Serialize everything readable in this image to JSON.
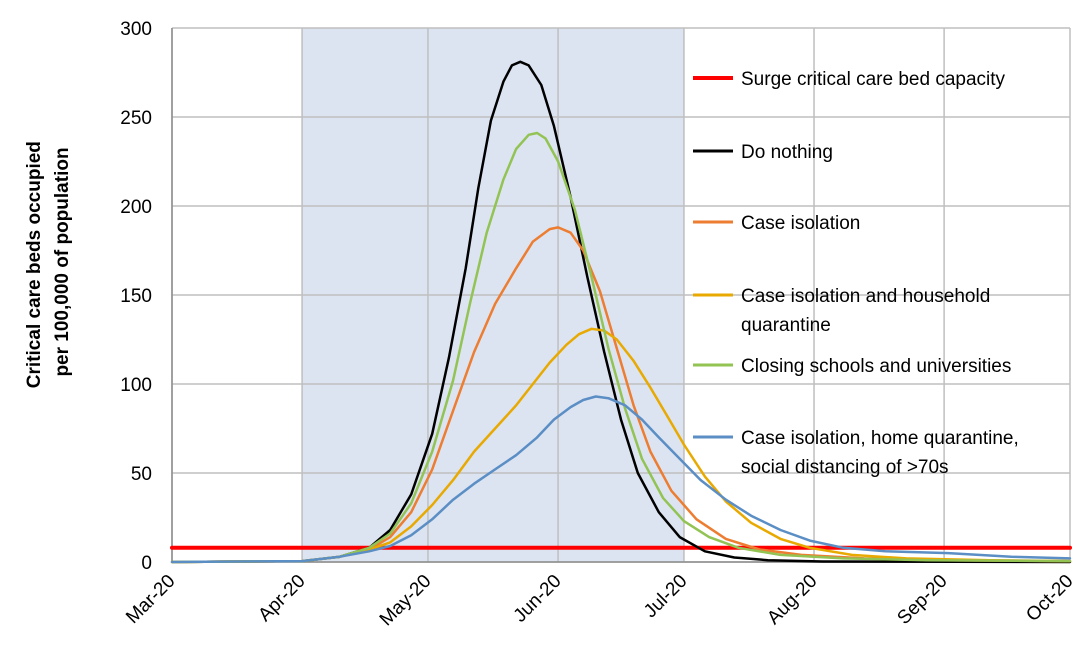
{
  "chart_data": {
    "type": "line",
    "title": "",
    "xlabel": "",
    "ylabel_lines": [
      "Critical care beds occupied",
      "per 100,000 of population"
    ],
    "x_ticks": [
      "Mar-20",
      "Apr-20",
      "May-20",
      "Jun-20",
      "Jul-20",
      "Aug-20",
      "Sep-20",
      "Oct-20"
    ],
    "y_ticks": [
      "0",
      "50",
      "100",
      "150",
      "200",
      "250",
      "300"
    ],
    "ylim": [
      0,
      300
    ],
    "xlim_days": [
      0,
      214
    ],
    "grid": true,
    "shaded_region": {
      "from": "Apr-20",
      "to": "Jul-20",
      "color": "#dce4f2"
    },
    "legend_position": "right",
    "series": [
      {
        "name": "Surge critical care bed capacity",
        "color": "#ff0000",
        "width": 4,
        "points": [
          [
            0,
            8
          ],
          [
            214,
            8
          ]
        ]
      },
      {
        "name": "Do nothing",
        "color": "#000000",
        "width": 2.5,
        "points": [
          [
            0,
            0
          ],
          [
            31,
            0.5
          ],
          [
            40,
            3
          ],
          [
            47,
            8
          ],
          [
            52,
            18
          ],
          [
            57,
            38
          ],
          [
            62,
            72
          ],
          [
            66,
            115
          ],
          [
            70,
            165
          ],
          [
            73,
            210
          ],
          [
            76,
            248
          ],
          [
            79,
            270
          ],
          [
            81,
            279
          ],
          [
            83,
            281
          ],
          [
            85,
            279
          ],
          [
            88,
            268
          ],
          [
            91,
            245
          ],
          [
            95,
            205
          ],
          [
            99,
            160
          ],
          [
            103,
            118
          ],
          [
            107,
            80
          ],
          [
            111,
            50
          ],
          [
            116,
            28
          ],
          [
            121,
            14
          ],
          [
            127,
            6
          ],
          [
            134,
            2.5
          ],
          [
            142,
            1
          ],
          [
            155,
            0.3
          ],
          [
            214,
            0
          ]
        ]
      },
      {
        "name": "Case isolation",
        "color": "#ed7d31",
        "width": 2.5,
        "points": [
          [
            0,
            0
          ],
          [
            31,
            0.5
          ],
          [
            40,
            3
          ],
          [
            47,
            7
          ],
          [
            52,
            14
          ],
          [
            57,
            28
          ],
          [
            62,
            52
          ],
          [
            67,
            85
          ],
          [
            72,
            118
          ],
          [
            77,
            145
          ],
          [
            82,
            165
          ],
          [
            86,
            180
          ],
          [
            90,
            187
          ],
          [
            92,
            188
          ],
          [
            95,
            185
          ],
          [
            98,
            175
          ],
          [
            102,
            152
          ],
          [
            106,
            120
          ],
          [
            110,
            88
          ],
          [
            114,
            62
          ],
          [
            119,
            40
          ],
          [
            125,
            24
          ],
          [
            132,
            13
          ],
          [
            140,
            7
          ],
          [
            150,
            4
          ],
          [
            165,
            2
          ],
          [
            185,
            1
          ],
          [
            214,
            0.5
          ]
        ]
      },
      {
        "name": "Case isolation and household quarantine",
        "color": "#e8a900",
        "width": 2.5,
        "points": [
          [
            0,
            0
          ],
          [
            31,
            0.5
          ],
          [
            40,
            3
          ],
          [
            47,
            7
          ],
          [
            52,
            11
          ],
          [
            57,
            20
          ],
          [
            62,
            32
          ],
          [
            67,
            46
          ],
          [
            72,
            62
          ],
          [
            77,
            75
          ],
          [
            82,
            88
          ],
          [
            86,
            100
          ],
          [
            90,
            112
          ],
          [
            94,
            122
          ],
          [
            97,
            128
          ],
          [
            100,
            131
          ],
          [
            103,
            130
          ],
          [
            106,
            125
          ],
          [
            110,
            113
          ],
          [
            114,
            98
          ],
          [
            118,
            82
          ],
          [
            122,
            66
          ],
          [
            127,
            48
          ],
          [
            132,
            34
          ],
          [
            138,
            22
          ],
          [
            145,
            13
          ],
          [
            152,
            8
          ],
          [
            162,
            4
          ],
          [
            175,
            2
          ],
          [
            195,
            1
          ],
          [
            214,
            0.5
          ]
        ]
      },
      {
        "name": "Closing schools and universities",
        "color": "#92c353",
        "width": 2.5,
        "points": [
          [
            0,
            0
          ],
          [
            31,
            0.5
          ],
          [
            40,
            3
          ],
          [
            47,
            8
          ],
          [
            52,
            16
          ],
          [
            57,
            33
          ],
          [
            62,
            62
          ],
          [
            67,
            102
          ],
          [
            71,
            145
          ],
          [
            75,
            185
          ],
          [
            79,
            215
          ],
          [
            82,
            232
          ],
          [
            85,
            240
          ],
          [
            87,
            241
          ],
          [
            89,
            238
          ],
          [
            92,
            225
          ],
          [
            96,
            198
          ],
          [
            100,
            160
          ],
          [
            104,
            120
          ],
          [
            108,
            86
          ],
          [
            112,
            58
          ],
          [
            117,
            36
          ],
          [
            122,
            23
          ],
          [
            128,
            14
          ],
          [
            135,
            8
          ],
          [
            145,
            4
          ],
          [
            160,
            2
          ],
          [
            180,
            1
          ],
          [
            214,
            0.5
          ]
        ]
      },
      {
        "name": "Case isolation, home quarantine, social distancing of >70s",
        "color": "#5b8ec4",
        "width": 2.5,
        "points": [
          [
            0,
            0
          ],
          [
            31,
            0.5
          ],
          [
            40,
            3
          ],
          [
            47,
            6
          ],
          [
            52,
            9
          ],
          [
            57,
            15
          ],
          [
            62,
            24
          ],
          [
            67,
            35
          ],
          [
            72,
            44
          ],
          [
            77,
            52
          ],
          [
            82,
            60
          ],
          [
            87,
            70
          ],
          [
            91,
            80
          ],
          [
            95,
            87
          ],
          [
            98,
            91
          ],
          [
            101,
            93
          ],
          [
            104,
            92
          ],
          [
            108,
            88
          ],
          [
            112,
            80
          ],
          [
            116,
            70
          ],
          [
            121,
            58
          ],
          [
            126,
            46
          ],
          [
            132,
            35
          ],
          [
            138,
            26
          ],
          [
            145,
            18
          ],
          [
            152,
            12
          ],
          [
            160,
            8
          ],
          [
            170,
            6
          ],
          [
            185,
            5
          ],
          [
            200,
            3
          ],
          [
            214,
            2
          ]
        ]
      }
    ]
  }
}
